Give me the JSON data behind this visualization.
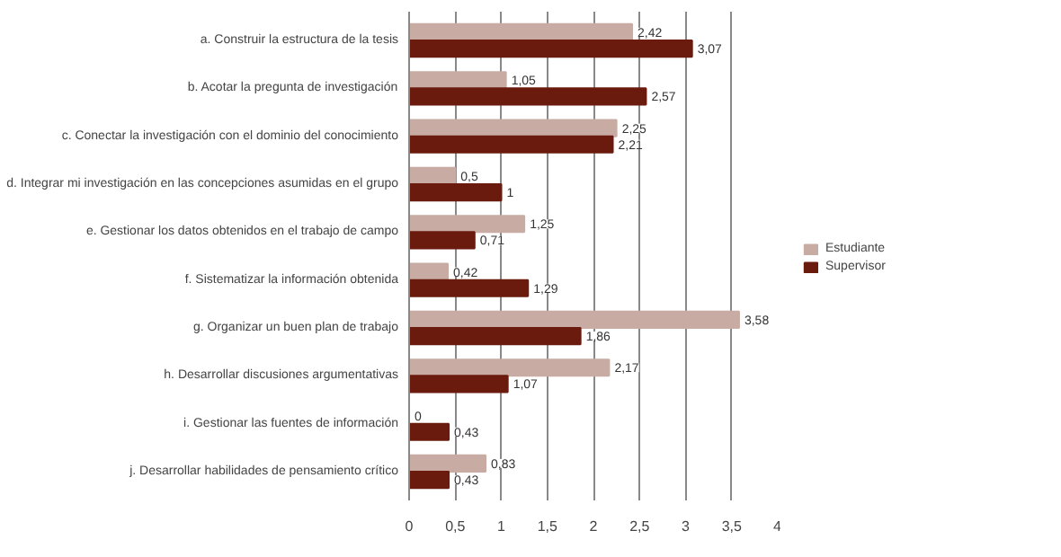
{
  "chart_data": {
    "type": "bar",
    "orientation": "horizontal",
    "categories": [
      "a. Construir la estructura de la tesis",
      "b. Acotar la pregunta de investigación",
      "c. Conectar la investigación con el dominio del conocimiento",
      "d. Integrar mi investigación en las concepciones asumidas en el grupo",
      "e. Gestionar los datos obtenidos en el trabajo de campo",
      "f. Sistematizar la información obtenida",
      "g. Organizar un buen plan de trabajo",
      "h. Desarrollar discusiones argumentativas",
      "i. Gestionar las fuentes de información",
      "j. Desarrollar habilidades de pensamiento crítico"
    ],
    "series": [
      {
        "name": "Estudiante",
        "color": "#c8aca4",
        "values": [
          2.42,
          1.05,
          2.25,
          0.5,
          1.25,
          0.42,
          3.58,
          2.17,
          0,
          0.83
        ],
        "value_labels": [
          "2,42",
          "1,05",
          "2,25",
          "0,5",
          "1,25",
          "0,42",
          "3,58",
          "2,17",
          "0",
          "0,83"
        ]
      },
      {
        "name": "Supervisor",
        "color": "#6a1b0e",
        "values": [
          3.07,
          2.57,
          2.21,
          1,
          0.71,
          1.29,
          1.86,
          1.07,
          0.43,
          0.43
        ],
        "value_labels": [
          "3,07",
          "2,57",
          "2,21",
          "1",
          "0,71",
          "1,29",
          "1,86",
          "1,07",
          "0,43",
          "0,43"
        ]
      }
    ],
    "xlim": [
      0,
      4
    ],
    "xticks": [
      0,
      {
        "value": 0.5,
        "label": "0,5"
      },
      1,
      {
        "value": 1.5,
        "label": "1,5"
      },
      2,
      {
        "value": 2.5,
        "label": "2,5"
      },
      3,
      {
        "value": 3.5,
        "label": "3,5"
      },
      4
    ],
    "grid": "x",
    "legend": "right"
  }
}
